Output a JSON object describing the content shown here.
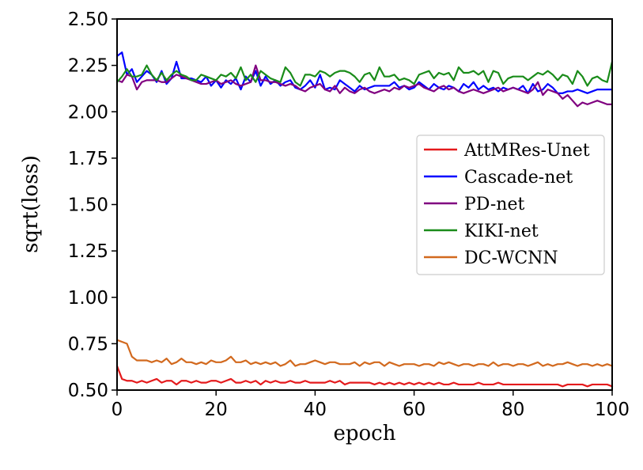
{
  "chart_data": {
    "type": "line",
    "xlabel": "epoch",
    "ylabel": "sqrt(loss)",
    "xlim": [
      0,
      100
    ],
    "ylim": [
      0.5,
      2.5
    ],
    "xticks": [
      0,
      20,
      40,
      60,
      80,
      100
    ],
    "xtick_labels": [
      "0",
      "20",
      "40",
      "60",
      "80",
      "100"
    ],
    "yticks": [
      0.5,
      0.75,
      1.0,
      1.25,
      1.5,
      1.75,
      2.0,
      2.25,
      2.5
    ],
    "ytick_labels": [
      "0.50",
      "0.75",
      "1.00",
      "1.25",
      "1.50",
      "1.75",
      "2.00",
      "2.25",
      "2.50"
    ],
    "grid": false,
    "legend_position": "center-right",
    "x": [
      0,
      1,
      2,
      3,
      4,
      5,
      6,
      7,
      8,
      9,
      10,
      11,
      12,
      13,
      14,
      15,
      16,
      17,
      18,
      19,
      20,
      21,
      22,
      23,
      24,
      25,
      26,
      27,
      28,
      29,
      30,
      31,
      32,
      33,
      34,
      35,
      36,
      37,
      38,
      39,
      40,
      41,
      42,
      43,
      44,
      45,
      46,
      47,
      48,
      49,
      50,
      51,
      52,
      53,
      54,
      55,
      56,
      57,
      58,
      59,
      60,
      61,
      62,
      63,
      64,
      65,
      66,
      67,
      68,
      69,
      70,
      71,
      72,
      73,
      74,
      75,
      76,
      77,
      78,
      79,
      80,
      81,
      82,
      83,
      84,
      85,
      86,
      87,
      88,
      89,
      90,
      91,
      92,
      93,
      94,
      95,
      96,
      97,
      98,
      99,
      100
    ],
    "series": [
      {
        "name": "AttMRes-Unet",
        "color": "#e41a1c",
        "values": [
          0.63,
          0.56,
          0.55,
          0.55,
          0.54,
          0.55,
          0.54,
          0.55,
          0.56,
          0.54,
          0.55,
          0.55,
          0.53,
          0.55,
          0.55,
          0.54,
          0.55,
          0.54,
          0.54,
          0.55,
          0.55,
          0.54,
          0.55,
          0.56,
          0.54,
          0.54,
          0.55,
          0.54,
          0.55,
          0.53,
          0.55,
          0.54,
          0.55,
          0.54,
          0.54,
          0.55,
          0.54,
          0.54,
          0.55,
          0.54,
          0.54,
          0.54,
          0.54,
          0.55,
          0.54,
          0.55,
          0.53,
          0.54,
          0.54,
          0.54,
          0.54,
          0.54,
          0.53,
          0.54,
          0.53,
          0.54,
          0.53,
          0.54,
          0.53,
          0.54,
          0.53,
          0.54,
          0.53,
          0.54,
          0.53,
          0.54,
          0.53,
          0.53,
          0.54,
          0.53,
          0.53,
          0.53,
          0.53,
          0.54,
          0.53,
          0.53,
          0.53,
          0.54,
          0.53,
          0.53,
          0.53,
          0.53,
          0.53,
          0.53,
          0.53,
          0.53,
          0.53,
          0.53,
          0.53,
          0.53,
          0.52,
          0.53,
          0.53,
          0.53,
          0.53,
          0.52,
          0.53,
          0.53,
          0.53,
          0.53,
          0.52
        ]
      },
      {
        "name": "Cascade-net",
        "color": "#0000ff",
        "values": [
          2.3,
          2.32,
          2.2,
          2.23,
          2.16,
          2.19,
          2.22,
          2.2,
          2.16,
          2.22,
          2.15,
          2.18,
          2.27,
          2.18,
          2.18,
          2.18,
          2.17,
          2.16,
          2.19,
          2.14,
          2.17,
          2.13,
          2.17,
          2.15,
          2.18,
          2.12,
          2.19,
          2.16,
          2.22,
          2.14,
          2.19,
          2.15,
          2.17,
          2.14,
          2.16,
          2.17,
          2.13,
          2.12,
          2.14,
          2.17,
          2.13,
          2.2,
          2.12,
          2.13,
          2.12,
          2.17,
          2.15,
          2.13,
          2.11,
          2.14,
          2.12,
          2.13,
          2.14,
          2.14,
          2.14,
          2.14,
          2.16,
          2.13,
          2.14,
          2.12,
          2.13,
          2.16,
          2.14,
          2.12,
          2.15,
          2.13,
          2.12,
          2.14,
          2.13,
          2.11,
          2.15,
          2.13,
          2.16,
          2.12,
          2.14,
          2.12,
          2.13,
          2.11,
          2.13,
          2.12,
          2.13,
          2.12,
          2.14,
          2.1,
          2.15,
          2.11,
          2.12,
          2.15,
          2.13,
          2.1,
          2.1,
          2.11,
          2.11,
          2.12,
          2.11,
          2.1,
          2.11,
          2.12,
          2.12,
          2.12,
          2.12
        ]
      },
      {
        "name": "PD-net",
        "color": "#800080",
        "values": [
          2.17,
          2.16,
          2.2,
          2.19,
          2.12,
          2.16,
          2.17,
          2.17,
          2.17,
          2.16,
          2.16,
          2.18,
          2.2,
          2.19,
          2.18,
          2.17,
          2.16,
          2.15,
          2.15,
          2.16,
          2.17,
          2.15,
          2.16,
          2.17,
          2.15,
          2.14,
          2.15,
          2.16,
          2.25,
          2.17,
          2.17,
          2.16,
          2.16,
          2.15,
          2.14,
          2.15,
          2.14,
          2.12,
          2.11,
          2.13,
          2.14,
          2.15,
          2.12,
          2.11,
          2.14,
          2.1,
          2.13,
          2.11,
          2.1,
          2.12,
          2.13,
          2.11,
          2.1,
          2.11,
          2.12,
          2.11,
          2.13,
          2.12,
          2.14,
          2.13,
          2.14,
          2.15,
          2.13,
          2.12,
          2.11,
          2.13,
          2.14,
          2.12,
          2.13,
          2.11,
          2.1,
          2.11,
          2.12,
          2.11,
          2.1,
          2.11,
          2.12,
          2.13,
          2.11,
          2.12,
          2.13,
          2.12,
          2.11,
          2.1,
          2.12,
          2.16,
          2.09,
          2.12,
          2.11,
          2.1,
          2.07,
          2.09,
          2.06,
          2.03,
          2.05,
          2.04,
          2.05,
          2.06,
          2.05,
          2.04,
          2.04
        ]
      },
      {
        "name": "KIKI-net",
        "color": "#1a8c1a",
        "values": [
          2.16,
          2.19,
          2.23,
          2.19,
          2.19,
          2.2,
          2.25,
          2.2,
          2.17,
          2.21,
          2.17,
          2.2,
          2.22,
          2.2,
          2.19,
          2.17,
          2.17,
          2.2,
          2.19,
          2.18,
          2.17,
          2.2,
          2.19,
          2.21,
          2.18,
          2.24,
          2.17,
          2.2,
          2.16,
          2.22,
          2.2,
          2.18,
          2.17,
          2.16,
          2.24,
          2.21,
          2.16,
          2.14,
          2.2,
          2.2,
          2.19,
          2.22,
          2.21,
          2.19,
          2.21,
          2.22,
          2.22,
          2.21,
          2.19,
          2.16,
          2.2,
          2.21,
          2.17,
          2.24,
          2.19,
          2.19,
          2.2,
          2.17,
          2.18,
          2.17,
          2.15,
          2.2,
          2.21,
          2.22,
          2.18,
          2.21,
          2.2,
          2.21,
          2.17,
          2.24,
          2.21,
          2.21,
          2.22,
          2.2,
          2.22,
          2.16,
          2.22,
          2.21,
          2.15,
          2.18,
          2.19,
          2.19,
          2.19,
          2.17,
          2.19,
          2.21,
          2.2,
          2.22,
          2.2,
          2.17,
          2.2,
          2.19,
          2.15,
          2.22,
          2.19,
          2.14,
          2.18,
          2.19,
          2.17,
          2.16,
          2.27
        ]
      },
      {
        "name": "DC-WCNN",
        "color": "#d2691e",
        "values": [
          0.77,
          0.76,
          0.75,
          0.68,
          0.66,
          0.66,
          0.66,
          0.65,
          0.66,
          0.65,
          0.67,
          0.64,
          0.65,
          0.67,
          0.65,
          0.65,
          0.64,
          0.65,
          0.64,
          0.66,
          0.65,
          0.65,
          0.66,
          0.68,
          0.65,
          0.65,
          0.66,
          0.64,
          0.65,
          0.64,
          0.65,
          0.64,
          0.65,
          0.63,
          0.64,
          0.66,
          0.63,
          0.64,
          0.64,
          0.65,
          0.66,
          0.65,
          0.64,
          0.65,
          0.65,
          0.64,
          0.64,
          0.64,
          0.65,
          0.63,
          0.65,
          0.64,
          0.65,
          0.65,
          0.63,
          0.65,
          0.64,
          0.63,
          0.64,
          0.64,
          0.64,
          0.63,
          0.64,
          0.64,
          0.63,
          0.65,
          0.64,
          0.65,
          0.64,
          0.63,
          0.64,
          0.64,
          0.63,
          0.64,
          0.64,
          0.63,
          0.65,
          0.63,
          0.64,
          0.64,
          0.63,
          0.64,
          0.64,
          0.63,
          0.64,
          0.65,
          0.63,
          0.64,
          0.63,
          0.64,
          0.64,
          0.65,
          0.64,
          0.63,
          0.64,
          0.64,
          0.63,
          0.64,
          0.63,
          0.64,
          0.63
        ]
      }
    ]
  }
}
